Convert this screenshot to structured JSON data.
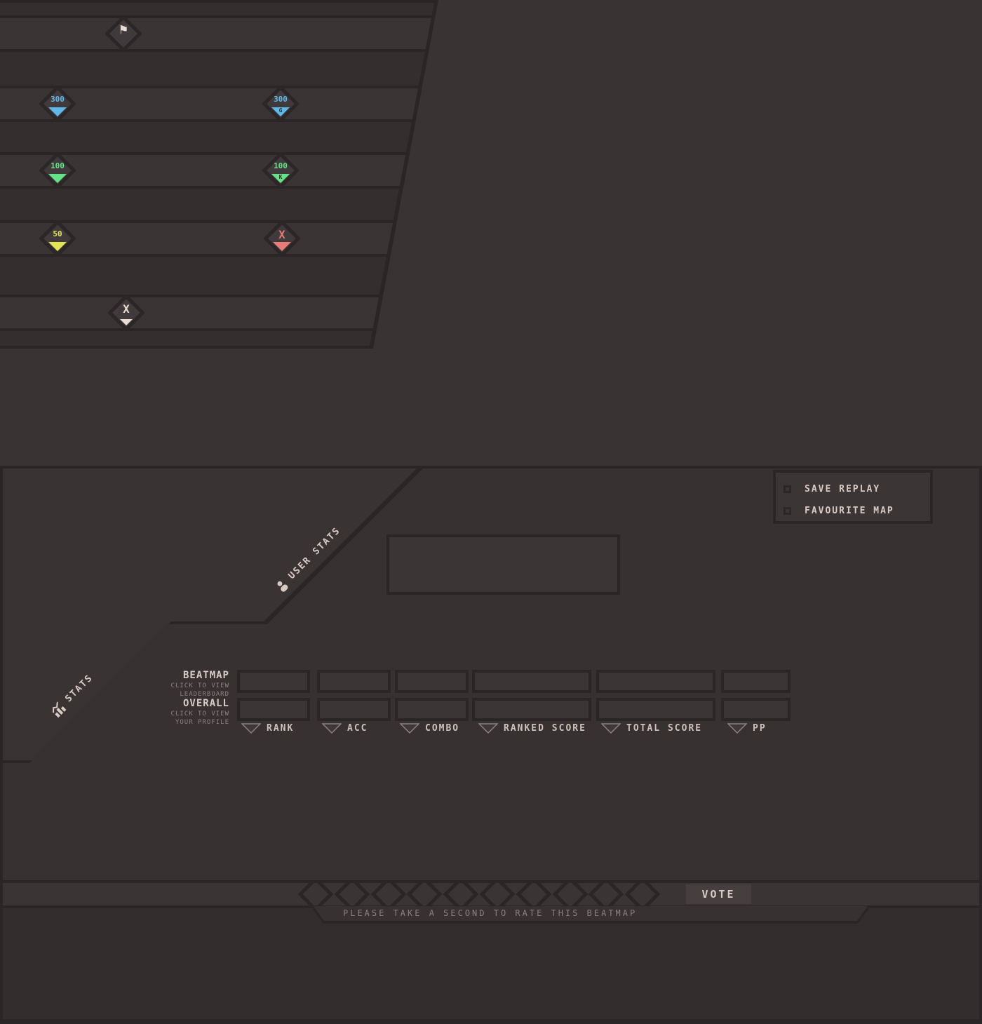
{
  "theme": {
    "background": "#3a3334",
    "panel_dark": "#373132",
    "row_dark": "#342e2f",
    "row_light": "#3a3435",
    "line": "#2a2526",
    "cream_text": "#d9cbc3",
    "gray_text": "#8b8082",
    "accent_blue": "#5fb8e8",
    "accent_green": "#63e387",
    "accent_yellow": "#e3e353",
    "accent_red": "#e87b78"
  },
  "hit_panel": {
    "judgments": [
      {
        "name": "max-combo-flag",
        "symbol": "⚑",
        "label": "",
        "suffix": ""
      },
      {
        "name": "hit-300",
        "label": "300",
        "suffix": ""
      },
      {
        "name": "hit-300g",
        "label": "300",
        "suffix": "G"
      },
      {
        "name": "hit-100",
        "label": "100",
        "suffix": ""
      },
      {
        "name": "hit-100k",
        "label": "100",
        "suffix": "K"
      },
      {
        "name": "hit-50",
        "label": "50",
        "suffix": ""
      },
      {
        "name": "miss",
        "label": "X",
        "suffix": ""
      },
      {
        "name": "slider-break",
        "label": "X",
        "suffix": ""
      }
    ]
  },
  "actions": {
    "save_replay": "SAVE REPLAY",
    "favourite_map": "FAVOURITE MAP"
  },
  "sections": {
    "user_stats": "USER STATS",
    "stats": "STATS"
  },
  "stats_table": {
    "rows": [
      {
        "title": "BEATMAP",
        "subtitle_line1": "CLICK TO VIEW",
        "subtitle_line2": "LEADERBOARD"
      },
      {
        "title": "OVERALL",
        "subtitle_line1": "CLICK TO VIEW",
        "subtitle_line2": "YOUR PROFILE"
      }
    ],
    "columns": [
      {
        "label": "RANK"
      },
      {
        "label": "ACC"
      },
      {
        "label": "COMBO"
      },
      {
        "label": "RANKED SCORE"
      },
      {
        "label": "TOTAL SCORE"
      },
      {
        "label": "PP"
      }
    ],
    "values": {
      "beatmap": [
        "",
        "",
        "",
        "",
        "",
        ""
      ],
      "overall": [
        "",
        "",
        "",
        "",
        "",
        ""
      ]
    }
  },
  "user_box": {
    "value": ""
  },
  "vote": {
    "button_label": "VOTE",
    "prompt": "PLEASE TAKE A SECOND TO RATE THIS BEATMAP",
    "star_count": 10
  }
}
